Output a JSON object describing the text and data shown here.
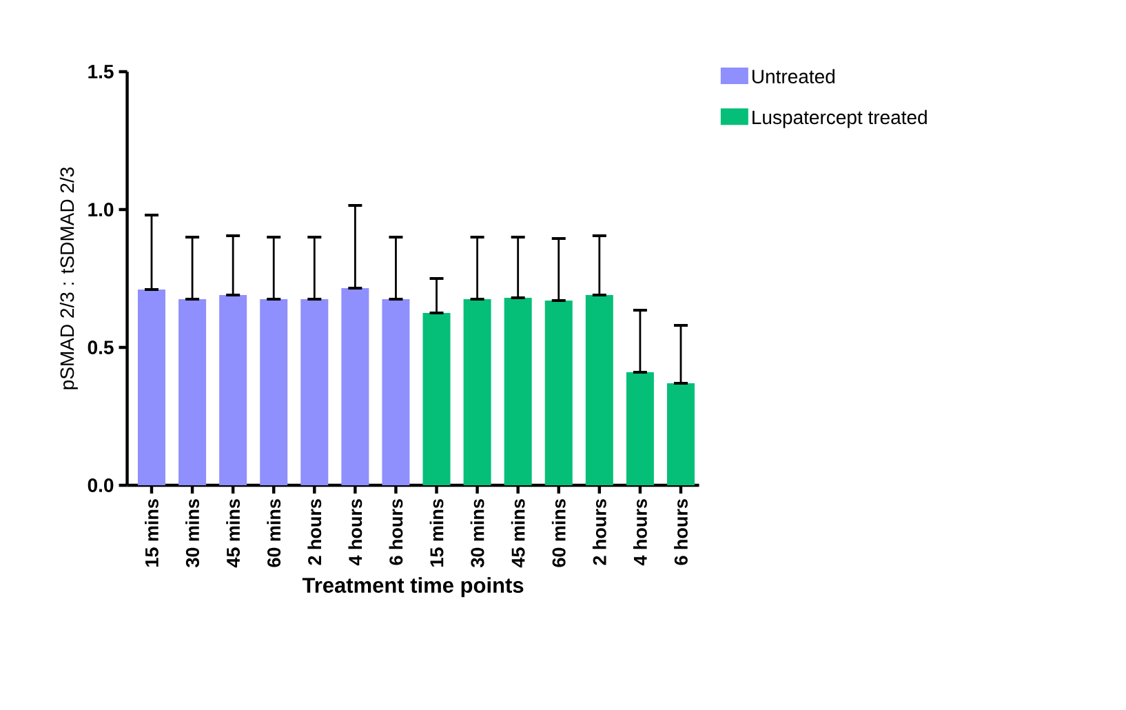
{
  "chart_data": {
    "type": "bar",
    "xlabel": "Treatment time points",
    "ylabel": "pSMAD 2/3 : tSDMAD 2/3",
    "categories": [
      "15 mins",
      "30 mins",
      "45 mins",
      "60 mins",
      "2 hours",
      "4 hours",
      "6 hours",
      "15 mins",
      "30 mins",
      "45 mins",
      "60 mins",
      "2 hours",
      "4 hours",
      "6 hours"
    ],
    "series": [
      {
        "name": "Untreated",
        "color": "#8f8ffd",
        "values": [
          0.71,
          0.675,
          0.69,
          0.675,
          0.675,
          0.715,
          0.675,
          null,
          null,
          null,
          null,
          null,
          null,
          null
        ],
        "errors": [
          [
            0.71,
            0.98
          ],
          [
            0.675,
            0.9
          ],
          [
            0.69,
            0.905
          ],
          [
            0.675,
            0.9
          ],
          [
            0.675,
            0.9
          ],
          [
            0.715,
            1.015
          ],
          [
            0.675,
            0.9
          ],
          null,
          null,
          null,
          null,
          null,
          null,
          null
        ]
      },
      {
        "name": "Luspatercept treated",
        "color": "#05bf78",
        "values": [
          null,
          null,
          null,
          null,
          null,
          null,
          null,
          0.625,
          0.675,
          0.68,
          0.67,
          0.69,
          0.41,
          0.37
        ],
        "errors": [
          null,
          null,
          null,
          null,
          null,
          null,
          null,
          [
            0.625,
            0.75
          ],
          [
            0.675,
            0.9
          ],
          [
            0.68,
            0.9
          ],
          [
            0.67,
            0.895
          ],
          [
            0.69,
            0.905
          ],
          [
            0.41,
            0.635
          ],
          [
            0.37,
            0.58
          ]
        ]
      }
    ],
    "ylim": [
      0,
      1.5
    ],
    "yticks": [
      {
        "value": 0,
        "label": "0.0"
      },
      {
        "value": 0.5,
        "label": "0.5"
      },
      {
        "value": 1.0,
        "label": "1.0"
      },
      {
        "value": 1.5,
        "label": "1.5"
      }
    ],
    "legend": "top right"
  }
}
